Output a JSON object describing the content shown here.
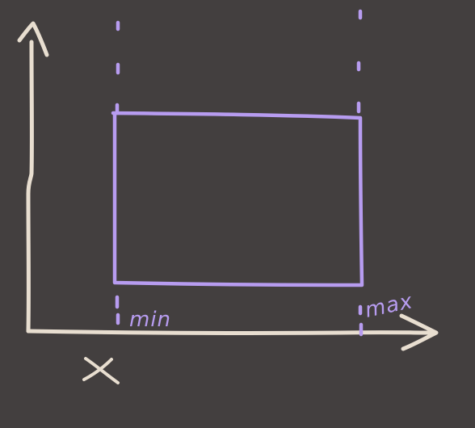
{
  "diagram": {
    "labels": {
      "min": "min",
      "max": "max",
      "x_axis": "X"
    },
    "colors": {
      "background": "#433f3f",
      "axis": "#e8ded0",
      "box": "#b79cf0"
    }
  }
}
